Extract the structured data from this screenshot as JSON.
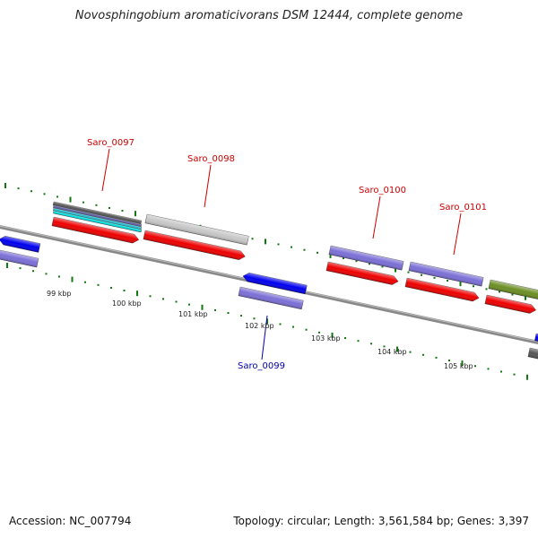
{
  "title": "Novosphingobium aromaticivorans DSM 12444, complete genome",
  "footer": {
    "accession": "Accession: NC_007794",
    "stats": "Topology: circular; Length: 3,561,584 bp; Genes: 3,397"
  },
  "colors": {
    "tick": "#117711",
    "backbone": "#888888",
    "cds_red": "#ee0000",
    "cds_blue": "#0000ee",
    "cds_purple": "#7b6fd6",
    "cds_grey": "#c7c7c7",
    "cds_green": "#6b8e23",
    "cds_dark": "#555555",
    "label_red": "#cc0000",
    "label_blue": "#0000aa"
  },
  "scale_labels": [
    "99 kbp",
    "100 kbp",
    "101 kbp",
    "102 kbp",
    "103 kbp",
    "104 kbp",
    "105 kbp"
  ],
  "gene_labels": [
    {
      "text": "Saro_0097",
      "color": "label_red"
    },
    {
      "text": "Saro_0098",
      "color": "label_red"
    },
    {
      "text": "Saro_0100",
      "color": "label_red"
    },
    {
      "text": "Saro_0101",
      "color": "label_red"
    },
    {
      "text": "Saro_0099",
      "color": "label_blue"
    }
  ]
}
